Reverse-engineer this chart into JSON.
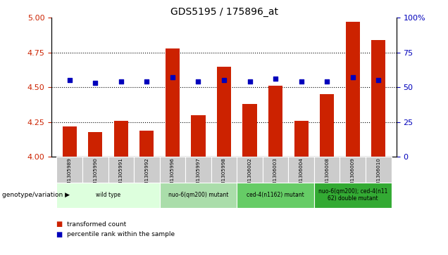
{
  "title": "GDS5195 / 175896_at",
  "samples": [
    "GSM1305989",
    "GSM1305990",
    "GSM1305991",
    "GSM1305992",
    "GSM1305996",
    "GSM1305997",
    "GSM1305998",
    "GSM1306002",
    "GSM1306003",
    "GSM1306004",
    "GSM1306008",
    "GSM1306009",
    "GSM1306010"
  ],
  "bar_values": [
    4.22,
    4.18,
    4.26,
    4.19,
    4.78,
    4.3,
    4.65,
    4.38,
    4.51,
    4.26,
    4.45,
    4.97,
    4.84
  ],
  "percentile_values": [
    55,
    53,
    54,
    54,
    57,
    54,
    55,
    54,
    56,
    54,
    54,
    57,
    55
  ],
  "ylim_left": [
    4.0,
    5.0
  ],
  "ylim_right": [
    0,
    100
  ],
  "yticks_left": [
    4.0,
    4.25,
    4.5,
    4.75,
    5.0
  ],
  "yticks_right": [
    0,
    25,
    50,
    75,
    100
  ],
  "bar_color": "#cc2200",
  "dot_color": "#0000bb",
  "bar_width": 0.55,
  "groups": [
    {
      "label": "wild type",
      "start": 0,
      "end": 4,
      "color": "#ddffdd"
    },
    {
      "label": "nuo-6(qm200) mutant",
      "start": 4,
      "end": 7,
      "color": "#aaddaa"
    },
    {
      "label": "ced-4(n1162) mutant",
      "start": 7,
      "end": 10,
      "color": "#66cc66"
    },
    {
      "label": "nuo-6(qm200); ced-4(n11\n62) double mutant",
      "start": 10,
      "end": 13,
      "color": "#33aa33"
    }
  ],
  "legend_items": [
    {
      "color": "#cc2200",
      "label": "transformed count"
    },
    {
      "color": "#0000bb",
      "label": "percentile rank within the sample"
    }
  ],
  "xlabel_label": "genotype/variation",
  "grid_color": "#000000",
  "background_color": "#ffffff",
  "label_color_left": "#cc2200",
  "label_color_right": "#0000bb"
}
